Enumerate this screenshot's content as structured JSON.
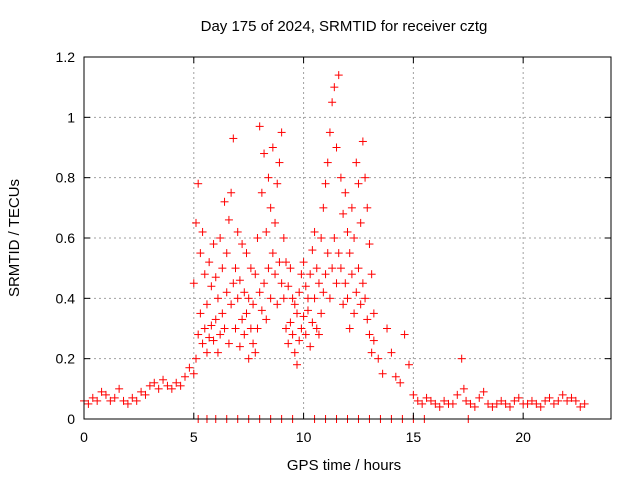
{
  "chart_data": {
    "type": "scatter",
    "title": "Day 175 of 2024, SRMTID for receiver cztg",
    "xlabel": "GPS time / hours",
    "ylabel": "SRMTID / TECUs",
    "xlim": [
      0,
      24
    ],
    "ylim": [
      0,
      1.2
    ],
    "xticks": [
      0,
      5,
      10,
      15,
      20
    ],
    "xtick_labels": [
      "0",
      "5",
      "10",
      "15",
      "20"
    ],
    "yticks": [
      0,
      0.2,
      0.4,
      0.6,
      0.8,
      1,
      1.2
    ],
    "ytick_labels": [
      "0",
      "0.2",
      "0.4",
      "0.6",
      "0.8",
      "1",
      "1.2"
    ],
    "grid": true,
    "marker": "+",
    "color": "#ff0000",
    "series": [
      {
        "name": "SRMTID",
        "x": [
          0.0,
          0.2,
          0.4,
          0.6,
          0.8,
          1.0,
          1.2,
          1.4,
          1.6,
          1.8,
          2.0,
          2.2,
          2.4,
          2.6,
          2.8,
          3.0,
          3.2,
          3.4,
          3.6,
          3.8,
          4.0,
          4.2,
          4.4,
          4.6,
          4.8,
          5.0,
          5.0,
          5.1,
          5.1,
          5.2,
          5.2,
          5.3,
          5.3,
          5.4,
          5.4,
          5.5,
          5.5,
          5.6,
          5.6,
          5.7,
          5.7,
          5.8,
          5.8,
          5.9,
          5.9,
          6.0,
          6.0,
          6.1,
          6.1,
          6.2,
          6.2,
          6.3,
          6.3,
          6.4,
          6.4,
          6.5,
          6.5,
          6.6,
          6.6,
          6.7,
          6.7,
          6.8,
          6.8,
          6.9,
          6.9,
          7.0,
          7.0,
          7.1,
          7.1,
          7.2,
          7.2,
          7.3,
          7.3,
          7.4,
          7.4,
          7.5,
          7.5,
          7.6,
          7.6,
          7.7,
          7.7,
          7.8,
          7.8,
          7.9,
          7.9,
          8.0,
          8.0,
          8.1,
          8.1,
          8.2,
          8.2,
          8.3,
          8.3,
          8.4,
          8.4,
          8.5,
          8.5,
          8.6,
          8.6,
          8.7,
          8.7,
          8.8,
          8.8,
          8.9,
          8.9,
          9.0,
          9.0,
          9.1,
          9.1,
          9.2,
          9.2,
          9.3,
          9.3,
          9.4,
          9.4,
          9.5,
          9.5,
          9.6,
          9.6,
          9.7,
          9.7,
          9.8,
          9.8,
          9.9,
          9.9,
          10.0,
          10.0,
          10.1,
          10.1,
          10.2,
          10.2,
          10.3,
          10.3,
          10.4,
          10.4,
          10.5,
          10.5,
          10.6,
          10.6,
          10.7,
          10.7,
          10.8,
          10.8,
          10.9,
          10.9,
          11.0,
          11.0,
          11.1,
          11.1,
          11.2,
          11.2,
          11.3,
          11.3,
          11.4,
          11.4,
          11.5,
          11.5,
          11.6,
          11.6,
          11.7,
          11.7,
          11.8,
          11.8,
          11.9,
          11.9,
          12.0,
          12.0,
          12.1,
          12.1,
          12.2,
          12.2,
          12.3,
          12.3,
          12.4,
          12.4,
          12.5,
          12.5,
          12.6,
          12.6,
          12.7,
          12.7,
          12.8,
          12.8,
          12.9,
          12.9,
          13.0,
          13.0,
          13.1,
          13.1,
          13.2,
          13.2,
          13.4,
          13.6,
          13.8,
          14.0,
          14.2,
          14.4,
          14.6,
          14.8,
          15.0,
          15.2,
          15.4,
          15.6,
          15.8,
          16.0,
          16.2,
          16.4,
          16.6,
          16.8,
          17.0,
          17.2,
          17.3,
          17.4,
          17.6,
          17.8,
          18.0,
          18.2,
          18.4,
          18.6,
          18.8,
          19.0,
          19.2,
          19.4,
          19.6,
          19.8,
          20.0,
          20.2,
          20.4,
          20.6,
          20.8,
          21.0,
          21.2,
          21.4,
          21.6,
          21.8,
          22.0,
          22.2,
          22.4,
          22.6,
          22.8,
          5.2,
          5.6,
          6.0,
          6.5,
          7.0,
          7.5,
          8.0,
          8.5,
          9.0,
          9.5,
          10.5,
          11.0,
          11.5,
          12.0,
          12.5,
          13.0,
          13.5,
          14.0,
          14.5,
          15.0,
          15.5,
          17.5
        ],
        "y": [
          0.06,
          0.05,
          0.07,
          0.06,
          0.09,
          0.08,
          0.06,
          0.07,
          0.1,
          0.06,
          0.05,
          0.07,
          0.06,
          0.09,
          0.08,
          0.11,
          0.12,
          0.1,
          0.13,
          0.11,
          0.1,
          0.12,
          0.11,
          0.14,
          0.17,
          0.15,
          0.45,
          0.2,
          0.65,
          0.28,
          0.78,
          0.35,
          0.55,
          0.25,
          0.62,
          0.3,
          0.48,
          0.22,
          0.38,
          0.27,
          0.52,
          0.31,
          0.44,
          0.26,
          0.58,
          0.33,
          0.47,
          0.22,
          0.4,
          0.28,
          0.6,
          0.35,
          0.5,
          0.3,
          0.72,
          0.42,
          0.55,
          0.25,
          0.66,
          0.38,
          0.75,
          0.45,
          0.93,
          0.3,
          0.5,
          0.4,
          0.62,
          0.24,
          0.46,
          0.33,
          0.58,
          0.28,
          0.42,
          0.35,
          0.55,
          0.2,
          0.4,
          0.3,
          0.5,
          0.25,
          0.38,
          0.22,
          0.48,
          0.3,
          0.6,
          0.42,
          0.97,
          0.36,
          0.75,
          0.45,
          0.88,
          0.33,
          0.62,
          0.5,
          0.8,
          0.4,
          0.7,
          0.55,
          0.9,
          0.48,
          0.65,
          0.38,
          0.78,
          0.52,
          0.85,
          0.45,
          0.95,
          0.4,
          0.6,
          0.3,
          0.52,
          0.25,
          0.44,
          0.32,
          0.5,
          0.28,
          0.4,
          0.22,
          0.38,
          0.18,
          0.35,
          0.26,
          0.42,
          0.3,
          0.48,
          0.34,
          0.52,
          0.28,
          0.44,
          0.36,
          0.4,
          0.24,
          0.48,
          0.32,
          0.56,
          0.4,
          0.62,
          0.3,
          0.5,
          0.28,
          0.45,
          0.35,
          0.6,
          0.42,
          0.7,
          0.48,
          0.78,
          0.55,
          0.85,
          0.4,
          0.95,
          0.5,
          1.05,
          0.6,
          1.1,
          0.45,
          0.9,
          0.55,
          1.14,
          0.5,
          0.8,
          0.38,
          0.68,
          0.45,
          0.75,
          0.4,
          0.62,
          0.3,
          0.55,
          0.48,
          0.7,
          0.35,
          0.6,
          0.42,
          0.85,
          0.5,
          0.78,
          0.38,
          0.65,
          0.45,
          0.92,
          0.4,
          0.8,
          0.33,
          0.7,
          0.28,
          0.58,
          0.22,
          0.48,
          0.35,
          0.26,
          0.2,
          0.15,
          0.3,
          0.22,
          0.14,
          0.12,
          0.28,
          0.18,
          0.08,
          0.06,
          0.05,
          0.07,
          0.06,
          0.05,
          0.04,
          0.06,
          0.05,
          0.05,
          0.08,
          0.2,
          0.1,
          0.06,
          0.05,
          0.04,
          0.07,
          0.09,
          0.05,
          0.04,
          0.05,
          0.06,
          0.05,
          0.04,
          0.06,
          0.07,
          0.05,
          0.05,
          0.06,
          0.05,
          0.04,
          0.06,
          0.07,
          0.05,
          0.06,
          0.08,
          0.06,
          0.07,
          0.06,
          0.04,
          0.05,
          0.0,
          0.0,
          0.0,
          0.0,
          0.0,
          0.0,
          0.0,
          0.0,
          0.0,
          0.0,
          0.0,
          0.0,
          0.0,
          0.0,
          0.0,
          0.0,
          0.0,
          0.0,
          0.0,
          0.0,
          0.0,
          0.0
        ]
      }
    ]
  }
}
